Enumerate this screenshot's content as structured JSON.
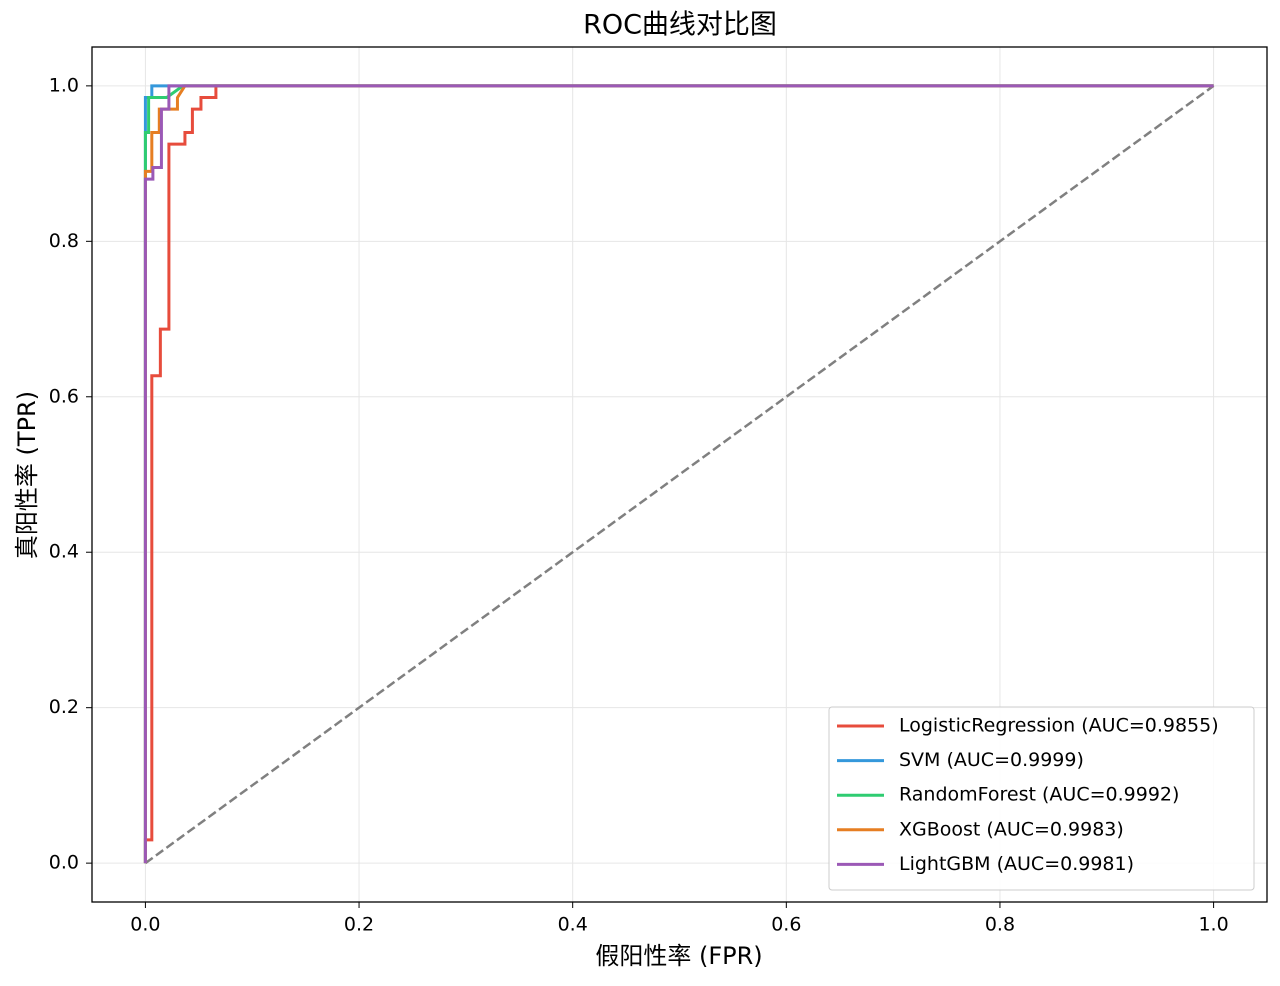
{
  "chart_data": {
    "type": "line",
    "title": "ROC曲线对比图",
    "x_label": "假阳性率 (FPR)",
    "y_label": "真阳性率 (TPR)",
    "xlim": [
      -0.05,
      1.05
    ],
    "ylim": [
      -0.05,
      1.05
    ],
    "xticks": [
      {
        "value": 0,
        "label": "0.0"
      },
      0.2,
      0.4,
      0.6,
      0.8,
      {
        "value": 1,
        "label": "1.0"
      }
    ],
    "yticks": [
      {
        "value": 0,
        "label": "0.0"
      },
      0.2,
      0.4,
      0.6,
      0.8,
      {
        "value": 1,
        "label": "1.0"
      }
    ],
    "grid": true,
    "legend": "lower right",
    "reference_line": {
      "x": [
        0,
        1
      ],
      "y": [
        0,
        1
      ],
      "color": "#808080",
      "dashed": true
    },
    "series": [
      {
        "name": "LogisticRegression (AUC=0.9855)",
        "color": "#e74c3c",
        "x": [
          0,
          0,
          0.006,
          0.006,
          0.014,
          0.014,
          0.022,
          0.022,
          0.037,
          0.037,
          0.044,
          0.044,
          0.052,
          0.052,
          0.066,
          0.066,
          1
        ],
        "values": [
          0,
          0.03,
          0.03,
          0.627,
          0.627,
          0.687,
          0.687,
          0.925,
          0.925,
          0.94,
          0.94,
          0.97,
          0.97,
          0.985,
          0.985,
          1,
          1
        ]
      },
      {
        "name": "SVM (AUC=0.9999)",
        "color": "#3498db",
        "x": [
          0,
          0,
          0.006,
          0.006,
          1
        ],
        "values": [
          0,
          0.985,
          0.985,
          1,
          1
        ]
      },
      {
        "name": "RandomForest (AUC=0.9992)",
        "color": "#2ecc71",
        "x": [
          0,
          0,
          0.003,
          0.003,
          0.02,
          0.035,
          1
        ],
        "values": [
          0,
          0.94,
          0.94,
          0.985,
          0.985,
          1,
          1
        ]
      },
      {
        "name": "XGBoost (AUC=0.9983)",
        "color": "#e67e22",
        "x": [
          0,
          0,
          0.006,
          0.006,
          0.013,
          0.013,
          0.03,
          0.03,
          0.037,
          1
        ],
        "values": [
          0,
          0.89,
          0.89,
          0.94,
          0.94,
          0.97,
          0.97,
          0.985,
          1,
          1
        ]
      },
      {
        "name": "LightGBM (AUC=0.9981)",
        "color": "#9b59b6",
        "x": [
          0,
          0,
          0.007,
          0.007,
          0.015,
          0.015,
          0.022,
          0.022,
          1
        ],
        "values": [
          0,
          0.88,
          0.88,
          0.895,
          0.895,
          0.97,
          0.97,
          1,
          1
        ]
      }
    ]
  }
}
